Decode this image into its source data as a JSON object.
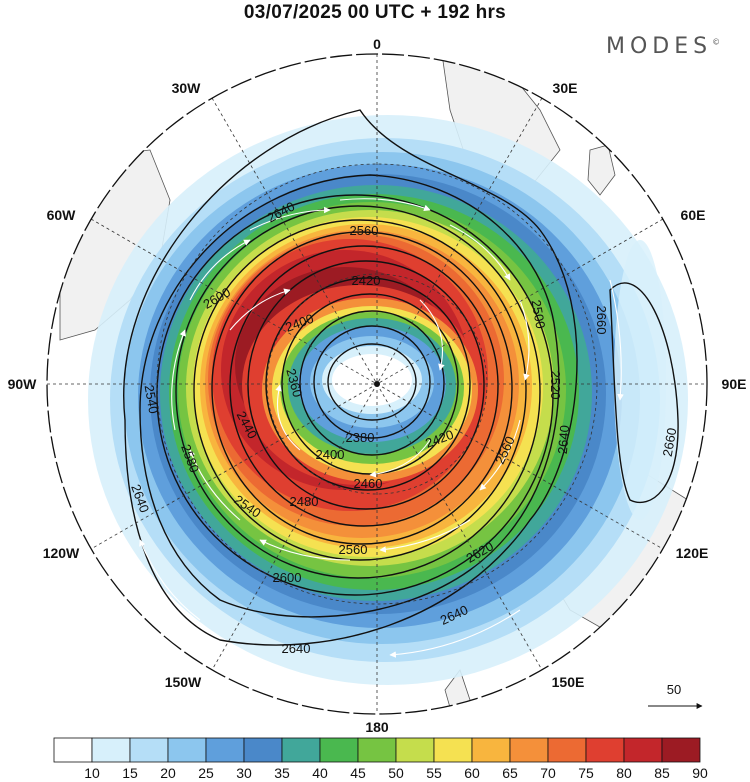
{
  "title": "03/07/2025  00 UTC  + 192 hrs",
  "brand": {
    "name": "MODES",
    "mark": "©"
  },
  "longitude_labels": [
    "0",
    "30E",
    "60E",
    "90E",
    "120E",
    "150E",
    "180",
    "150W",
    "120W",
    "90W",
    "60W",
    "30W"
  ],
  "contour_labels": [
    "2640",
    "2560",
    "2420",
    "2400",
    "2600",
    "2580",
    "2540",
    "2440",
    "2360",
    "2380",
    "2400",
    "2420",
    "2460",
    "2480",
    "2540",
    "2560",
    "2600",
    "2620",
    "2640",
    "2640",
    "2640",
    "2660",
    "2660",
    "2520",
    "2560",
    "2640",
    "2500"
  ],
  "vector_reference": {
    "value": "50"
  },
  "colorbar": {
    "ticks": [
      "10",
      "15",
      "20",
      "25",
      "30",
      "35",
      "40",
      "45",
      "50",
      "55",
      "60",
      "65",
      "70",
      "75",
      "80",
      "85",
      "90"
    ],
    "colors": [
      "#ffffff",
      "#d7f0fb",
      "#b5def7",
      "#8cc6ee",
      "#5f9fdc",
      "#4a88c9",
      "#41a79a",
      "#4ab84f",
      "#76c442",
      "#c5dd4c",
      "#f5e151",
      "#f8b53e",
      "#f4903a",
      "#ec6a33",
      "#df3f30",
      "#c3262b",
      "#9c1b23"
    ]
  }
}
